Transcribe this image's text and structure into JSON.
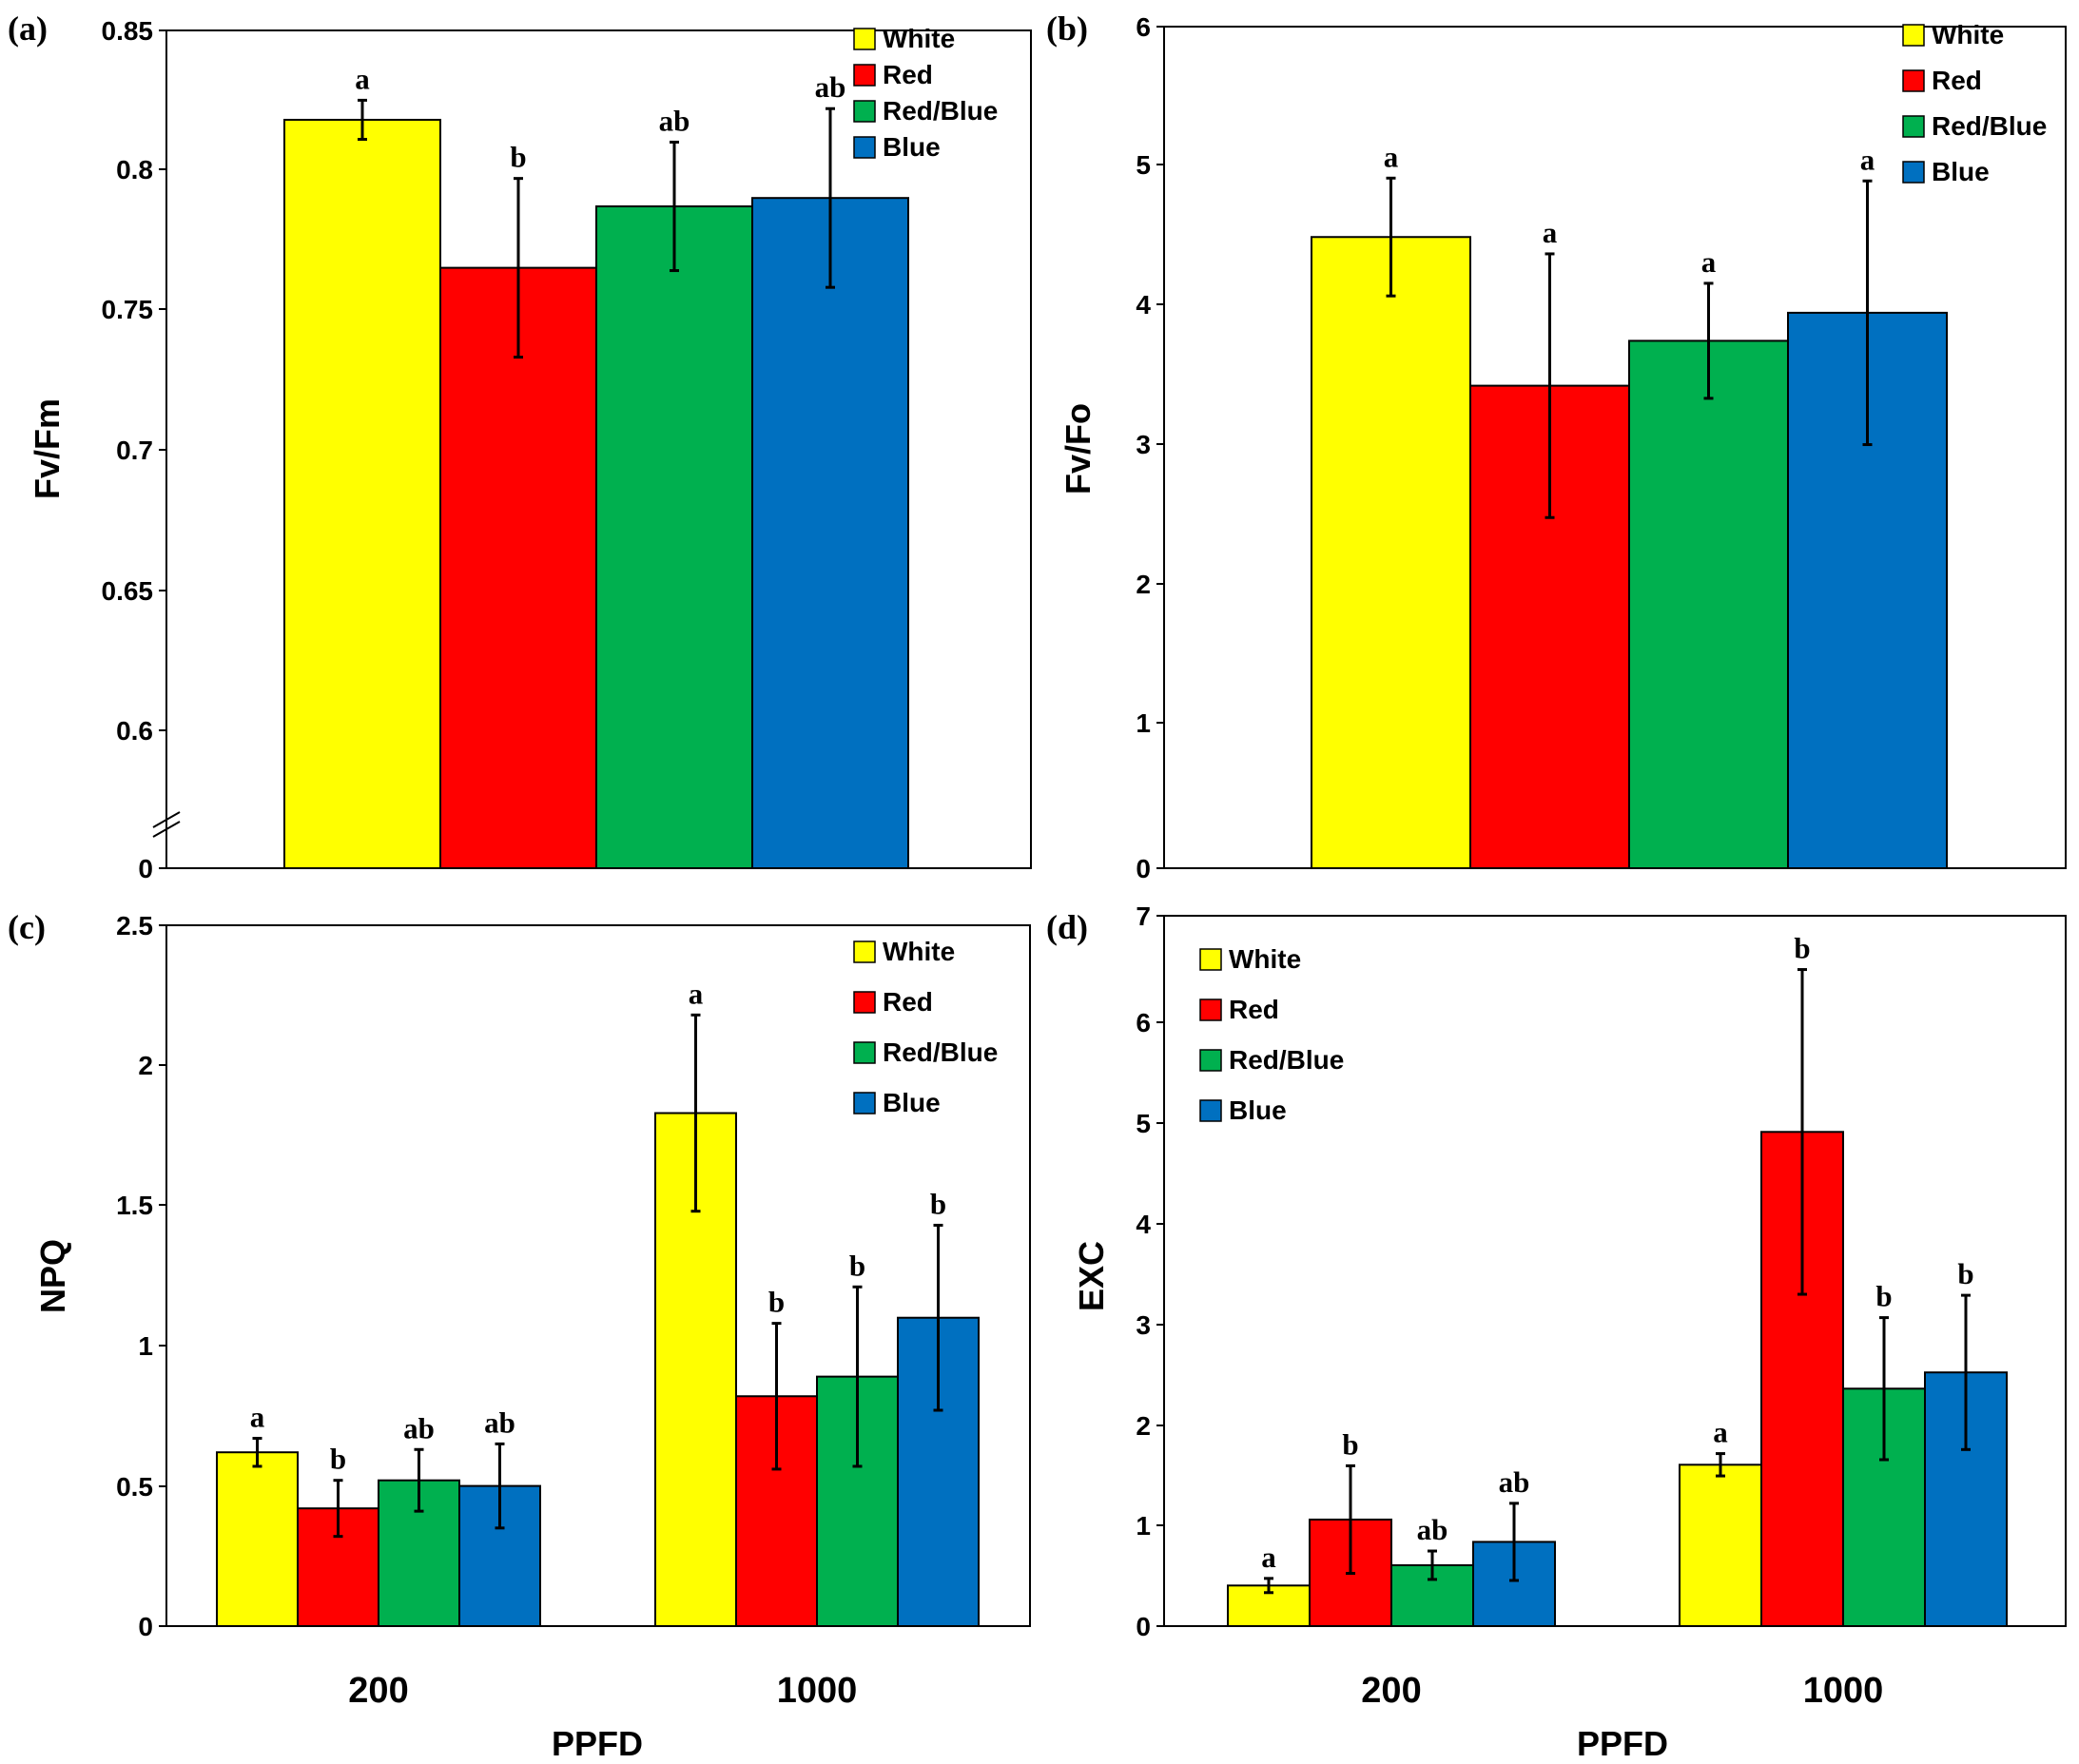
{
  "colors": {
    "White": "#ffff00",
    "Red": "#ff0000",
    "Red/Blue": "#00b04f",
    "Blue": "#0070c0",
    "axis": "#000000"
  },
  "chart_data": [
    {
      "panel": "(a)",
      "type": "bar",
      "ylabel": "Fv/Fm",
      "xlabel": "",
      "categories": [
        ""
      ],
      "axis_break": true,
      "yticks": [
        "0",
        "0.6",
        "0.65",
        "0.7",
        "0.75",
        "0.8",
        "0.85"
      ],
      "ylim": [
        0.55,
        0.85
      ],
      "legend": [
        "White",
        "Red",
        "Red/Blue",
        "Blue"
      ],
      "legend_position": "top-right",
      "series": [
        {
          "name": "White",
          "values": [
            0.818
          ],
          "errors": [
            0.007
          ],
          "letters": [
            "a"
          ]
        },
        {
          "name": "Red",
          "values": [
            0.765
          ],
          "errors": [
            0.032
          ],
          "letters": [
            "b"
          ]
        },
        {
          "name": "Red/Blue",
          "values": [
            0.787
          ],
          "errors": [
            0.023
          ],
          "letters": [
            "ab"
          ]
        },
        {
          "name": "Blue",
          "values": [
            0.79
          ],
          "errors": [
            0.032
          ],
          "letters": [
            "ab"
          ]
        }
      ]
    },
    {
      "panel": "(b)",
      "type": "bar",
      "ylabel": "Fv/Fo",
      "xlabel": "",
      "categories": [
        ""
      ],
      "axis_break": false,
      "yticks": [
        "0",
        "1",
        "2",
        "3",
        "4",
        "5",
        "6"
      ],
      "ylim": [
        0,
        6
      ],
      "legend": [
        "White",
        "Red",
        "Red/Blue",
        "Blue"
      ],
      "legend_position": "top-right",
      "series": [
        {
          "name": "White",
          "values": [
            4.5
          ],
          "errors": [
            0.42
          ],
          "letters": [
            "a"
          ]
        },
        {
          "name": "Red",
          "values": [
            3.44
          ],
          "errors": [
            0.94
          ],
          "letters": [
            "a"
          ]
        },
        {
          "name": "Red/Blue",
          "values": [
            3.76
          ],
          "errors": [
            0.41
          ],
          "letters": [
            "a"
          ]
        },
        {
          "name": "Blue",
          "values": [
            3.96
          ],
          "errors": [
            0.94
          ],
          "letters": [
            "a"
          ]
        }
      ]
    },
    {
      "panel": "(c)",
      "type": "bar",
      "ylabel": "NPQ",
      "xlabel": "PPFD",
      "categories": [
        "200",
        "1000"
      ],
      "axis_break": false,
      "yticks": [
        "0",
        "0.5",
        "1",
        "1.5",
        "2",
        "2.5"
      ],
      "ylim": [
        0,
        2.5
      ],
      "legend": [
        "White",
        "Red",
        "Red/Blue",
        "Blue"
      ],
      "legend_position": "top-right",
      "series": [
        {
          "name": "White",
          "values": [
            0.62,
            1.83
          ],
          "errors": [
            0.05,
            0.35
          ],
          "letters": [
            "a",
            "a"
          ]
        },
        {
          "name": "Red",
          "values": [
            0.42,
            0.82
          ],
          "errors": [
            0.1,
            0.26
          ],
          "letters": [
            "b",
            "b"
          ]
        },
        {
          "name": "Red/Blue",
          "values": [
            0.52,
            0.89
          ],
          "errors": [
            0.11,
            0.32
          ],
          "letters": [
            "ab",
            "b"
          ]
        },
        {
          "name": "Blue",
          "values": [
            0.5,
            1.1
          ],
          "errors": [
            0.15,
            0.33
          ],
          "letters": [
            "ab",
            "b"
          ]
        }
      ]
    },
    {
      "panel": "(d)",
      "type": "bar",
      "ylabel": "EXC",
      "xlabel": "PPFD",
      "categories": [
        "200",
        "1000"
      ],
      "axis_break": false,
      "yticks": [
        "0",
        "1",
        "2",
        "3",
        "4",
        "5",
        "6",
        "7"
      ],
      "ylim": [
        0,
        7
      ],
      "legend": [
        "White",
        "Red",
        "Red/Blue",
        "Blue"
      ],
      "legend_position": "top-left",
      "series": [
        {
          "name": "White",
          "values": [
            0.4,
            1.59
          ],
          "errors": [
            0.07,
            0.11
          ],
          "letters": [
            "a",
            "a"
          ]
        },
        {
          "name": "Red",
          "values": [
            1.05,
            4.87
          ],
          "errors": [
            0.53,
            1.6
          ],
          "letters": [
            "b",
            "b"
          ]
        },
        {
          "name": "Red/Blue",
          "values": [
            0.6,
            2.34
          ],
          "errors": [
            0.14,
            0.7
          ],
          "letters": [
            "ab",
            "b"
          ]
        },
        {
          "name": "Blue",
          "values": [
            0.83,
            2.5
          ],
          "errors": [
            0.38,
            0.76
          ],
          "letters": [
            "ab",
            "b"
          ]
        }
      ]
    }
  ]
}
